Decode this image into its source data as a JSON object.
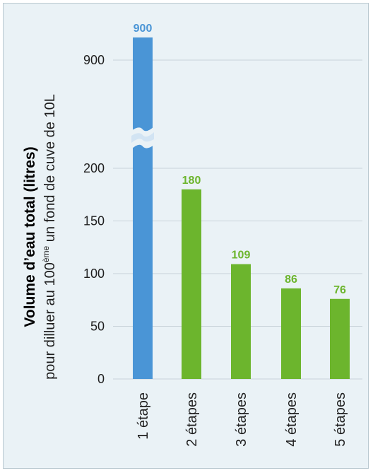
{
  "chart_data": {
    "type": "bar",
    "categories": [
      "1 étape",
      "2 étapes",
      "3 étapes",
      "4 étapes",
      "5 étapes"
    ],
    "values": [
      900,
      180,
      109,
      86,
      76
    ],
    "data_labels": [
      "900",
      "180",
      "109",
      "86",
      "76"
    ],
    "ylabel_main": "Volume d’eau total (litres)",
    "ylabel_sub_before": "pour dilluer au 100",
    "ylabel_sub_sup": "ème",
    "ylabel_sub_after": " un fond de cuve de 10L",
    "yticks": [
      0,
      50,
      100,
      150,
      200,
      900
    ],
    "yticks_labels": [
      "0",
      "50",
      "100",
      "150",
      "200",
      "900"
    ],
    "ylim": [
      0,
      900
    ],
    "axis_break": true,
    "grid": true,
    "legend": "none",
    "colors": {
      "first_bar": "#4a95d6",
      "other_bars": "#6cb52d",
      "first_label": "#4a95d6",
      "other_labels": "#6cb52d",
      "ylabel_main": "#4a95d6",
      "grid": "#c8d3d9"
    }
  }
}
